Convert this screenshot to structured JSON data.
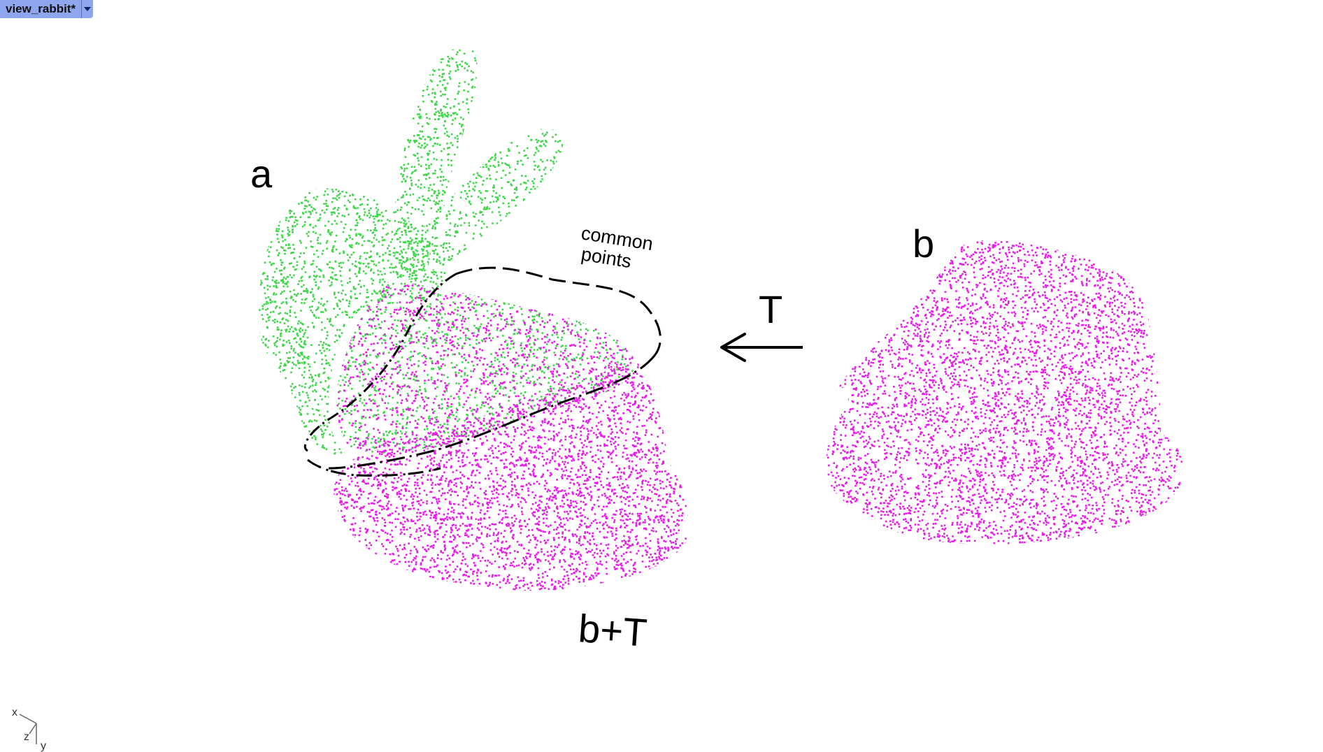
{
  "viewport": {
    "tab_label": "view_rabbit*"
  },
  "labels": {
    "a": "a",
    "b": "b",
    "b_plus_t": "b+T",
    "transform": "T",
    "common_points_line1": "common",
    "common_points_line2": "points"
  },
  "axes": {
    "x": "x",
    "y": "y",
    "z": "z"
  },
  "colors": {
    "cloud_a": "#3fd64a",
    "cloud_b": "#e81ce8",
    "annotation": "#000000",
    "tab_background": "#8ea6ee"
  },
  "icons": {
    "tab_dropdown": "chevron-down-icon",
    "axis_gizmo": "axis-triad-icon",
    "arrow": "arrow-left-icon"
  }
}
